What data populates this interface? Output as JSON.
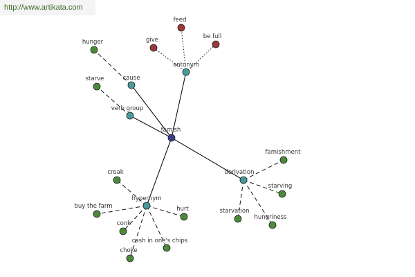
{
  "banner": {
    "url": "http://www.artikata.com"
  },
  "colors": {
    "center": "#3b3b8a",
    "relation": "#4a9a9a",
    "word": "#4a8a3a",
    "antonym_word": "#9a3a3a"
  },
  "graph": {
    "center": "famish",
    "relations": [
      "antonym",
      "cause",
      "verb group",
      "derivation",
      "hypernym"
    ],
    "words": {
      "antonym": [
        "feed",
        "give",
        "be full"
      ],
      "cause": [
        "hunger"
      ],
      "verb group": [
        "starve"
      ],
      "derivation": [
        "famishment",
        "starving",
        "hungriness",
        "starvation"
      ],
      "hypernym": [
        "croak",
        "buy the farm",
        "hurt",
        "conk",
        "cash in one's chips",
        "choke"
      ]
    }
  }
}
